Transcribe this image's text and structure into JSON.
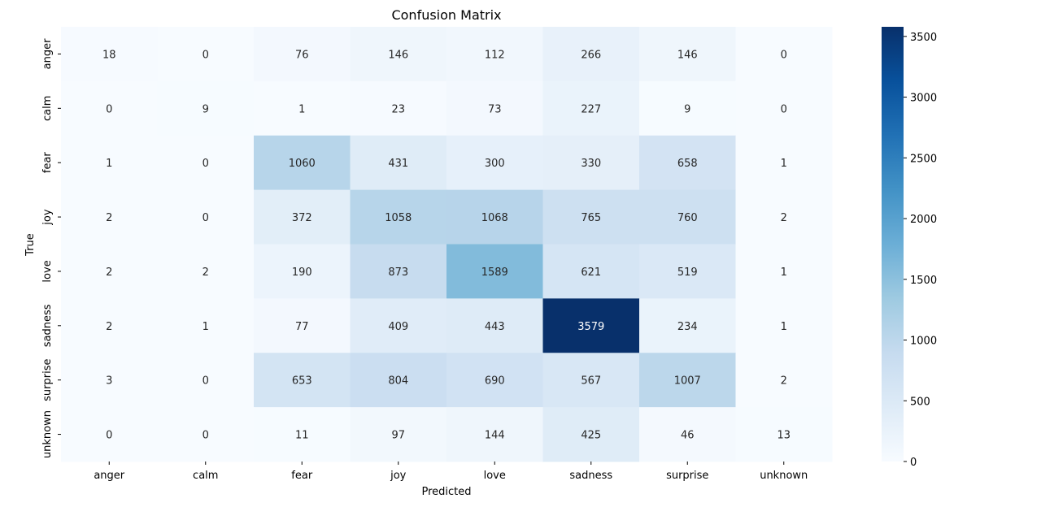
{
  "chart_data": {
    "type": "heatmap",
    "title": "Confusion Matrix",
    "xlabel": "Predicted",
    "ylabel": "True",
    "x_categories": [
      "anger",
      "calm",
      "fear",
      "joy",
      "love",
      "sadness",
      "surprise",
      "unknown"
    ],
    "y_categories": [
      "anger",
      "calm",
      "fear",
      "joy",
      "love",
      "sadness",
      "surprise",
      "unknown"
    ],
    "values": [
      [
        18,
        0,
        76,
        146,
        112,
        266,
        146,
        0
      ],
      [
        0,
        9,
        1,
        23,
        73,
        227,
        9,
        0
      ],
      [
        1,
        0,
        1060,
        431,
        300,
        330,
        658,
        1
      ],
      [
        2,
        0,
        372,
        1058,
        1068,
        765,
        760,
        2
      ],
      [
        2,
        2,
        190,
        873,
        1589,
        621,
        519,
        1
      ],
      [
        2,
        1,
        77,
        409,
        443,
        3579,
        234,
        1
      ],
      [
        3,
        0,
        653,
        804,
        690,
        567,
        1007,
        2
      ],
      [
        0,
        0,
        11,
        97,
        144,
        425,
        46,
        13
      ]
    ],
    "colorbar": {
      "min": 0,
      "max": 3579,
      "ticks": [
        0,
        500,
        1000,
        1500,
        2000,
        2500,
        3000,
        3500
      ],
      "colormap": "Blues"
    },
    "grid": false,
    "legend": "none"
  }
}
